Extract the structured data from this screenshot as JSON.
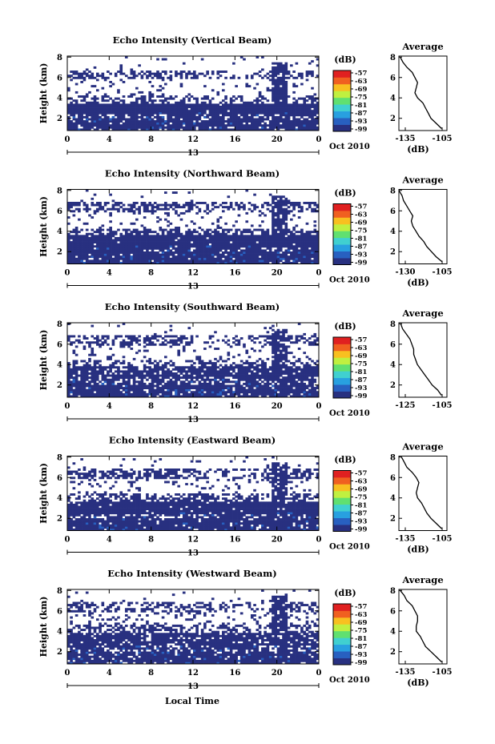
{
  "figure": {
    "footer_xlabel": "Local Time",
    "date_label": "Oct 2010",
    "day_label": "13",
    "colorbar_unit": "(dB)",
    "average_title": "Average",
    "average_xlabel": "(dB)",
    "ylabel": "Height (km)"
  },
  "chart_data": [
    {
      "type": "heatmap",
      "title": "Echo Intensity (Vertical Beam)",
      "xlabel": "Local Time",
      "ylabel": "Height (km)",
      "x_ticks": [
        "0",
        "4",
        "8",
        "12",
        "16",
        "20",
        "0"
      ],
      "y_ticks": [
        "2",
        "4",
        "6",
        "8"
      ],
      "xlim": [
        0,
        24
      ],
      "ylim": [
        0.8,
        8.1
      ],
      "colorbar": {
        "label": "(dB)",
        "ticks": [
          "-57",
          "-63",
          "-69",
          "-75",
          "-81",
          "-87",
          "-93",
          "-99"
        ],
        "range": [
          -100,
          -54
        ]
      },
      "color_scale": [
        "#283080",
        "#2860c0",
        "#28a0e0",
        "#40d0d0",
        "#60e070",
        "#c0f040",
        "#f8c020",
        "#f06020",
        "#e02020"
      ],
      "echo_bands": [
        {
          "from_km": 0.8,
          "to_km": 2.0,
          "level_db": -97,
          "coverage": 0.92
        },
        {
          "from_km": 2.0,
          "to_km": 2.4,
          "level_db": -98,
          "coverage": 0.7
        },
        {
          "from_km": 2.4,
          "to_km": 3.5,
          "level_db": -98,
          "coverage": 0.98
        },
        {
          "from_km": 3.5,
          "to_km": 4.2,
          "level_db": -99,
          "coverage": 0.45
        },
        {
          "from_km": 4.2,
          "to_km": 5.8,
          "level_db": -99,
          "coverage": 0.1
        },
        {
          "from_km": 5.8,
          "to_km": 6.6,
          "level_db": -99,
          "coverage": 0.55
        },
        {
          "from_km": 6.6,
          "to_km": 8.1,
          "level_db": -99,
          "coverage": 0.03
        }
      ],
      "average_profile": {
        "title": "Average",
        "xlabel": "(dB)",
        "x_ticks": [
          "-135",
          "-105"
        ],
        "xlim": [
          -138,
          -102
        ],
        "y_ticks": [
          "2",
          "4",
          "6",
          "8"
        ],
        "ylim": [
          0.8,
          8.1
        ],
        "height_km": [
          1.0,
          1.5,
          2.0,
          2.5,
          3.0,
          3.5,
          4.0,
          4.5,
          5.0,
          5.5,
          6.0,
          6.5,
          7.0,
          7.5,
          8.0
        ],
        "db": [
          -106,
          -110,
          -114,
          -116,
          -118,
          -120,
          -124,
          -126,
          -125,
          -124,
          -126,
          -128,
          -132,
          -135,
          -137
        ]
      }
    },
    {
      "type": "heatmap",
      "title": "Echo Intensity (Northward Beam)",
      "xlabel": "Local Time",
      "ylabel": "Height (km)",
      "x_ticks": [
        "0",
        "4",
        "8",
        "12",
        "16",
        "20",
        "0"
      ],
      "y_ticks": [
        "2",
        "4",
        "6",
        "8"
      ],
      "xlim": [
        0,
        24
      ],
      "ylim": [
        0.8,
        8.1
      ],
      "colorbar": {
        "label": "(dB)",
        "ticks": [
          "-57",
          "-63",
          "-69",
          "-75",
          "-81",
          "-87",
          "-93",
          "-99"
        ],
        "range": [
          -100,
          -54
        ]
      },
      "color_scale": [
        "#283080",
        "#2860c0",
        "#28a0e0",
        "#40d0d0",
        "#60e070",
        "#c0f040",
        "#f8c020",
        "#f06020",
        "#e02020"
      ],
      "echo_bands": [
        {
          "from_km": 0.8,
          "to_km": 2.0,
          "level_db": -98,
          "coverage": 0.95
        },
        {
          "from_km": 2.0,
          "to_km": 2.4,
          "level_db": -98,
          "coverage": 0.85
        },
        {
          "from_km": 2.4,
          "to_km": 3.6,
          "level_db": -98,
          "coverage": 0.97
        },
        {
          "from_km": 3.6,
          "to_km": 4.3,
          "level_db": -99,
          "coverage": 0.55
        },
        {
          "from_km": 4.3,
          "to_km": 5.8,
          "level_db": -99,
          "coverage": 0.12
        },
        {
          "from_km": 5.8,
          "to_km": 6.8,
          "level_db": -99,
          "coverage": 0.6
        },
        {
          "from_km": 6.8,
          "to_km": 8.1,
          "level_db": -99,
          "coverage": 0.04
        }
      ],
      "average_profile": {
        "title": "Average",
        "xlabel": "(dB)",
        "x_ticks": [
          "-130",
          "-105"
        ],
        "xlim": [
          -133,
          -102
        ],
        "y_ticks": [
          "2",
          "4",
          "6",
          "8"
        ],
        "ylim": [
          0.8,
          8.1
        ],
        "height_km": [
          1.0,
          1.5,
          2.0,
          2.5,
          3.0,
          3.5,
          4.0,
          4.5,
          5.0,
          5.5,
          6.0,
          6.5,
          7.0,
          7.5,
          8.0
        ],
        "db": [
          -105,
          -109,
          -112,
          -115,
          -117,
          -120,
          -122,
          -124,
          -125,
          -124,
          -126,
          -128,
          -130,
          -131,
          -133
        ]
      }
    },
    {
      "type": "heatmap",
      "title": "Echo Intensity (Southward Beam)",
      "xlabel": "Local Time",
      "ylabel": "Height (km)",
      "x_ticks": [
        "0",
        "4",
        "8",
        "12",
        "16",
        "20",
        "0"
      ],
      "y_ticks": [
        "2",
        "4",
        "6",
        "8"
      ],
      "xlim": [
        0,
        24
      ],
      "ylim": [
        0.8,
        8.1
      ],
      "colorbar": {
        "label": "(dB)",
        "ticks": [
          "-57",
          "-63",
          "-69",
          "-75",
          "-81",
          "-87",
          "-93",
          "-99"
        ],
        "range": [
          -100,
          -54
        ]
      },
      "color_scale": [
        "#283080",
        "#2860c0",
        "#28a0e0",
        "#40d0d0",
        "#60e070",
        "#c0f040",
        "#f8c020",
        "#f06020",
        "#e02020"
      ],
      "echo_bands": [
        {
          "from_km": 0.8,
          "to_km": 2.0,
          "level_db": -98,
          "coverage": 0.9
        },
        {
          "from_km": 2.0,
          "to_km": 2.6,
          "level_db": -98,
          "coverage": 0.7
        },
        {
          "from_km": 2.6,
          "to_km": 3.8,
          "level_db": -99,
          "coverage": 0.85
        },
        {
          "from_km": 3.8,
          "to_km": 4.5,
          "level_db": -99,
          "coverage": 0.45
        },
        {
          "from_km": 4.5,
          "to_km": 5.8,
          "level_db": -99,
          "coverage": 0.12
        },
        {
          "from_km": 5.8,
          "to_km": 6.8,
          "level_db": -99,
          "coverage": 0.5
        },
        {
          "from_km": 6.8,
          "to_km": 8.1,
          "level_db": -99,
          "coverage": 0.04
        }
      ],
      "average_profile": {
        "title": "Average",
        "xlabel": "",
        "x_ticks": [
          "-125",
          "-105"
        ],
        "xlim": [
          -128,
          -102
        ],
        "y_ticks": [
          "2",
          "4",
          "6",
          "8"
        ],
        "ylim": [
          0.8,
          8.1
        ],
        "height_km": [
          1.0,
          1.5,
          2.0,
          2.5,
          3.0,
          3.5,
          4.0,
          4.5,
          5.0,
          5.5,
          6.0,
          6.5,
          7.0,
          7.5,
          8.0
        ],
        "db": [
          -105,
          -107,
          -110,
          -112,
          -114,
          -116,
          -118,
          -119,
          -120,
          -120,
          -121,
          -122,
          -124,
          -126,
          -127
        ]
      }
    },
    {
      "type": "heatmap",
      "title": "Echo Intensity (Eastward Beam)",
      "xlabel": "Local Time",
      "ylabel": "Height (km)",
      "x_ticks": [
        "0",
        "4",
        "8",
        "12",
        "16",
        "20",
        "0"
      ],
      "y_ticks": [
        "2",
        "4",
        "6",
        "8"
      ],
      "xlim": [
        0,
        24
      ],
      "ylim": [
        0.8,
        8.1
      ],
      "colorbar": {
        "label": "(dB)",
        "ticks": [
          "-57",
          "-63",
          "-69",
          "-75",
          "-81",
          "-87",
          "-93",
          "-99"
        ],
        "range": [
          -100,
          -54
        ]
      },
      "color_scale": [
        "#283080",
        "#2860c0",
        "#28a0e0",
        "#40d0d0",
        "#60e070",
        "#c0f040",
        "#f8c020",
        "#f06020",
        "#e02020"
      ],
      "echo_bands": [
        {
          "from_km": 0.8,
          "to_km": 2.0,
          "level_db": -97,
          "coverage": 0.93
        },
        {
          "from_km": 2.0,
          "to_km": 2.5,
          "level_db": -98,
          "coverage": 0.7
        },
        {
          "from_km": 2.5,
          "to_km": 3.6,
          "level_db": -98,
          "coverage": 0.97
        },
        {
          "from_km": 3.6,
          "to_km": 4.4,
          "level_db": -99,
          "coverage": 0.5
        },
        {
          "from_km": 4.4,
          "to_km": 5.8,
          "level_db": -99,
          "coverage": 0.12
        },
        {
          "from_km": 5.8,
          "to_km": 6.8,
          "level_db": -99,
          "coverage": 0.55
        },
        {
          "from_km": 6.8,
          "to_km": 8.1,
          "level_db": -99,
          "coverage": 0.04
        }
      ],
      "average_profile": {
        "title": "Average",
        "xlabel": "(dB)",
        "x_ticks": [
          "-135",
          "-105"
        ],
        "xlim": [
          -138,
          -102
        ],
        "y_ticks": [
          "2",
          "4",
          "6",
          "8"
        ],
        "ylim": [
          0.8,
          8.1
        ],
        "height_km": [
          1.0,
          1.5,
          2.0,
          2.5,
          3.0,
          3.5,
          4.0,
          4.5,
          5.0,
          5.5,
          6.0,
          6.5,
          7.0,
          7.5,
          8.0
        ],
        "db": [
          -106,
          -110,
          -114,
          -117,
          -119,
          -121,
          -124,
          -125,
          -124,
          -123,
          -125,
          -128,
          -132,
          -134,
          -136
        ]
      }
    },
    {
      "type": "heatmap",
      "title": "Echo Intensity (Westward Beam)",
      "xlabel": "Local Time",
      "ylabel": "Height (km)",
      "x_ticks": [
        "0",
        "4",
        "8",
        "12",
        "16",
        "20",
        "0"
      ],
      "y_ticks": [
        "2",
        "4",
        "6",
        "8"
      ],
      "xlim": [
        0,
        24
      ],
      "ylim": [
        0.8,
        8.1
      ],
      "colorbar": {
        "label": "(dB)",
        "ticks": [
          "-57",
          "-63",
          "-69",
          "-75",
          "-81",
          "-87",
          "-93",
          "-99"
        ],
        "range": [
          -100,
          -54
        ]
      },
      "color_scale": [
        "#283080",
        "#2860c0",
        "#28a0e0",
        "#40d0d0",
        "#60e070",
        "#c0f040",
        "#f8c020",
        "#f06020",
        "#e02020"
      ],
      "echo_bands": [
        {
          "from_km": 0.8,
          "to_km": 2.0,
          "level_db": -97,
          "coverage": 0.9
        },
        {
          "from_km": 2.0,
          "to_km": 2.6,
          "level_db": -98,
          "coverage": 0.7
        },
        {
          "from_km": 2.6,
          "to_km": 3.8,
          "level_db": -99,
          "coverage": 0.85
        },
        {
          "from_km": 3.8,
          "to_km": 4.6,
          "level_db": -99,
          "coverage": 0.5
        },
        {
          "from_km": 4.6,
          "to_km": 5.8,
          "level_db": -99,
          "coverage": 0.15
        },
        {
          "from_km": 5.8,
          "to_km": 6.8,
          "level_db": -99,
          "coverage": 0.5
        },
        {
          "from_km": 6.8,
          "to_km": 8.1,
          "level_db": -99,
          "coverage": 0.04
        }
      ],
      "average_profile": {
        "title": "Average",
        "xlabel": "(dB)",
        "x_ticks": [
          "-135",
          "-105"
        ],
        "xlim": [
          -138,
          -102
        ],
        "y_ticks": [
          "2",
          "4",
          "6",
          "8"
        ],
        "ylim": [
          0.8,
          8.1
        ],
        "height_km": [
          1.0,
          1.5,
          2.0,
          2.5,
          3.0,
          3.5,
          4.0,
          4.5,
          5.0,
          5.5,
          6.0,
          6.5,
          7.0,
          7.5,
          8.0
        ],
        "db": [
          -106,
          -110,
          -114,
          -118,
          -120,
          -122,
          -125,
          -125,
          -124,
          -124,
          -126,
          -128,
          -132,
          -134,
          -137
        ]
      }
    }
  ]
}
